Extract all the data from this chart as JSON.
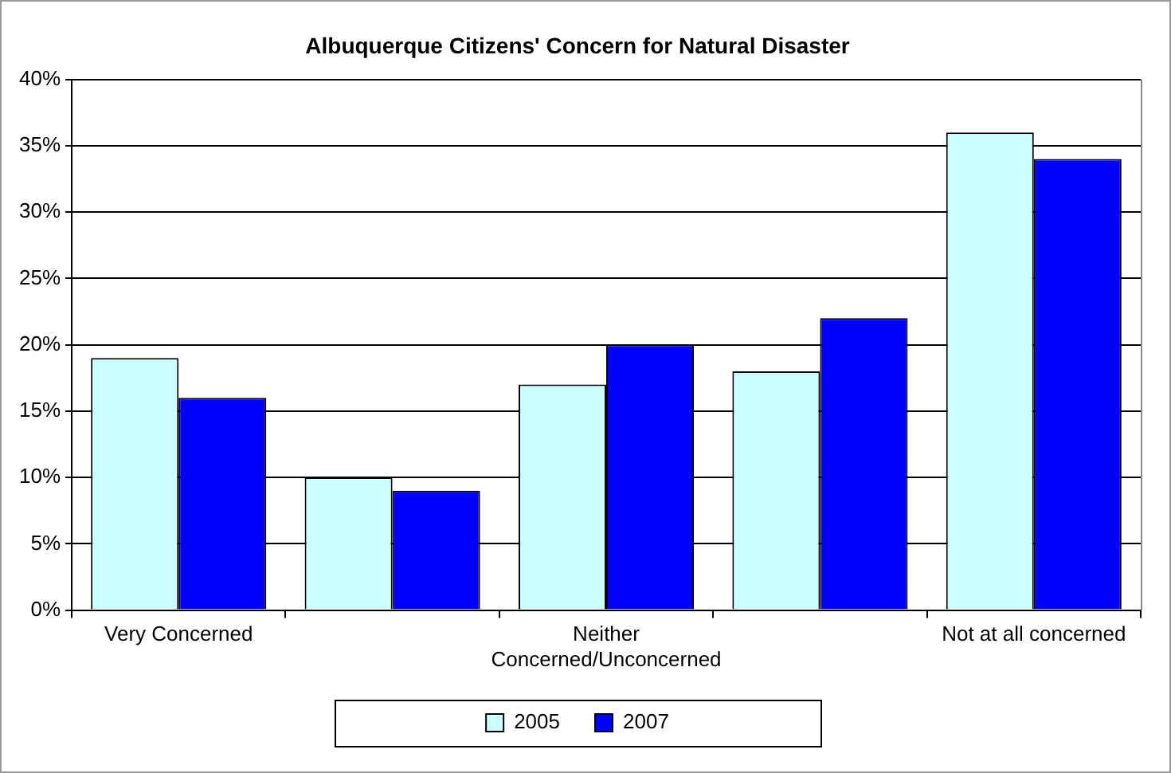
{
  "chart_data": {
    "type": "bar",
    "title": "Albuquerque Citizens' Concern for Natural Disaster",
    "categories": [
      "Very Concerned",
      null,
      "Neither Concerned/Unconcerned",
      null,
      "Not at all concerned"
    ],
    "series": [
      {
        "name": "2005",
        "color": "#ccffff",
        "values": [
          19,
          10,
          17,
          18,
          36
        ]
      },
      {
        "name": "2007",
        "color": "#0000ff",
        "values": [
          16,
          9,
          20,
          22,
          34
        ]
      }
    ],
    "ylim": [
      0,
      40
    ],
    "yticks": [
      {
        "value": 0,
        "label": "0%"
      },
      {
        "value": 5,
        "label": "5%"
      },
      {
        "value": 10,
        "label": "10%"
      },
      {
        "value": 15,
        "label": "15%"
      },
      {
        "value": 20,
        "label": "20%"
      },
      {
        "value": 25,
        "label": "25%"
      },
      {
        "value": 30,
        "label": "30%"
      },
      {
        "value": 35,
        "label": "35%"
      },
      {
        "value": 40,
        "label": "40%"
      }
    ],
    "grid": "y",
    "legend": "bottom"
  }
}
